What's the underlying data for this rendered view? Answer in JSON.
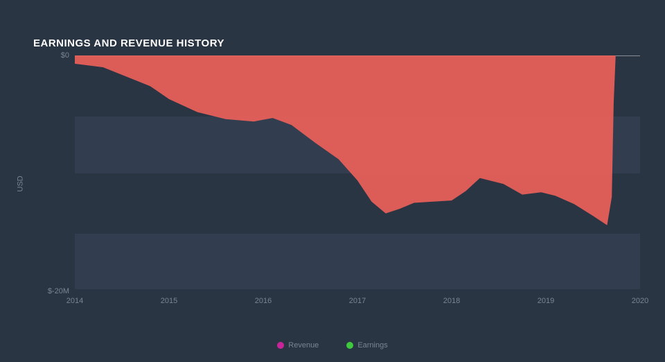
{
  "chart": {
    "type": "area",
    "title": "EARNINGS AND REVENUE HISTORY",
    "background_color": "#2a3544",
    "grid_band_color": "#323e4f",
    "title_color": "#ffffff",
    "title_fontsize": 15,
    "axis_label_color": "#7a8592",
    "axis_label_fontsize": 11,
    "y_axis": {
      "label": "USD",
      "min": -20,
      "max": 0,
      "ticks": [
        {
          "value": 0,
          "label": "$0"
        },
        {
          "value": -20,
          "label": "$-20M"
        }
      ]
    },
    "x_axis": {
      "min": 2014,
      "max": 2020,
      "ticks": [
        {
          "value": 2014,
          "label": "2014"
        },
        {
          "value": 2015,
          "label": "2015"
        },
        {
          "value": 2016,
          "label": "2016"
        },
        {
          "value": 2017,
          "label": "2017"
        },
        {
          "value": 2018,
          "label": "2018"
        },
        {
          "value": 2019,
          "label": "2019"
        },
        {
          "value": 2020,
          "label": "2020"
        }
      ]
    },
    "grid_bands": [
      {
        "from": -5.2,
        "to": -10.0
      },
      {
        "from": -15.1,
        "to": -19.8
      }
    ],
    "series": [
      {
        "name": "Revenue",
        "color": "#c72599",
        "fill_opacity": 0.85,
        "data": []
      },
      {
        "name": "Earnings",
        "color": "#3ec93e",
        "fill_opacity": 0.85,
        "data": []
      },
      {
        "name": "EarningsArea",
        "color": "#ec5f59",
        "fill_opacity": 0.92,
        "data": [
          {
            "x": 2014.0,
            "y": -0.7
          },
          {
            "x": 2014.3,
            "y": -1.0
          },
          {
            "x": 2014.55,
            "y": -1.8
          },
          {
            "x": 2014.8,
            "y": -2.6
          },
          {
            "x": 2015.0,
            "y": -3.7
          },
          {
            "x": 2015.3,
            "y": -4.8
          },
          {
            "x": 2015.6,
            "y": -5.4
          },
          {
            "x": 2015.9,
            "y": -5.6
          },
          {
            "x": 2016.1,
            "y": -5.3
          },
          {
            "x": 2016.3,
            "y": -5.9
          },
          {
            "x": 2016.55,
            "y": -7.4
          },
          {
            "x": 2016.8,
            "y": -8.8
          },
          {
            "x": 2017.0,
            "y": -10.6
          },
          {
            "x": 2017.15,
            "y": -12.4
          },
          {
            "x": 2017.3,
            "y": -13.4
          },
          {
            "x": 2017.45,
            "y": -13.0
          },
          {
            "x": 2017.6,
            "y": -12.5
          },
          {
            "x": 2017.8,
            "y": -12.4
          },
          {
            "x": 2018.0,
            "y": -12.3
          },
          {
            "x": 2018.15,
            "y": -11.5
          },
          {
            "x": 2018.3,
            "y": -10.4
          },
          {
            "x": 2018.55,
            "y": -10.9
          },
          {
            "x": 2018.75,
            "y": -11.8
          },
          {
            "x": 2018.95,
            "y": -11.6
          },
          {
            "x": 2019.1,
            "y": -11.9
          },
          {
            "x": 2019.3,
            "y": -12.6
          },
          {
            "x": 2019.5,
            "y": -13.6
          },
          {
            "x": 2019.65,
            "y": -14.4
          },
          {
            "x": 2019.7,
            "y": -12.0
          },
          {
            "x": 2019.72,
            "y": -4.0
          },
          {
            "x": 2019.74,
            "y": -0.2
          }
        ]
      }
    ],
    "legend": [
      {
        "label": "Revenue",
        "color": "#c72599"
      },
      {
        "label": "Earnings",
        "color": "#3ec93e"
      }
    ],
    "zero_line_color": "#e8e9ea",
    "zero_line_width": 1
  }
}
